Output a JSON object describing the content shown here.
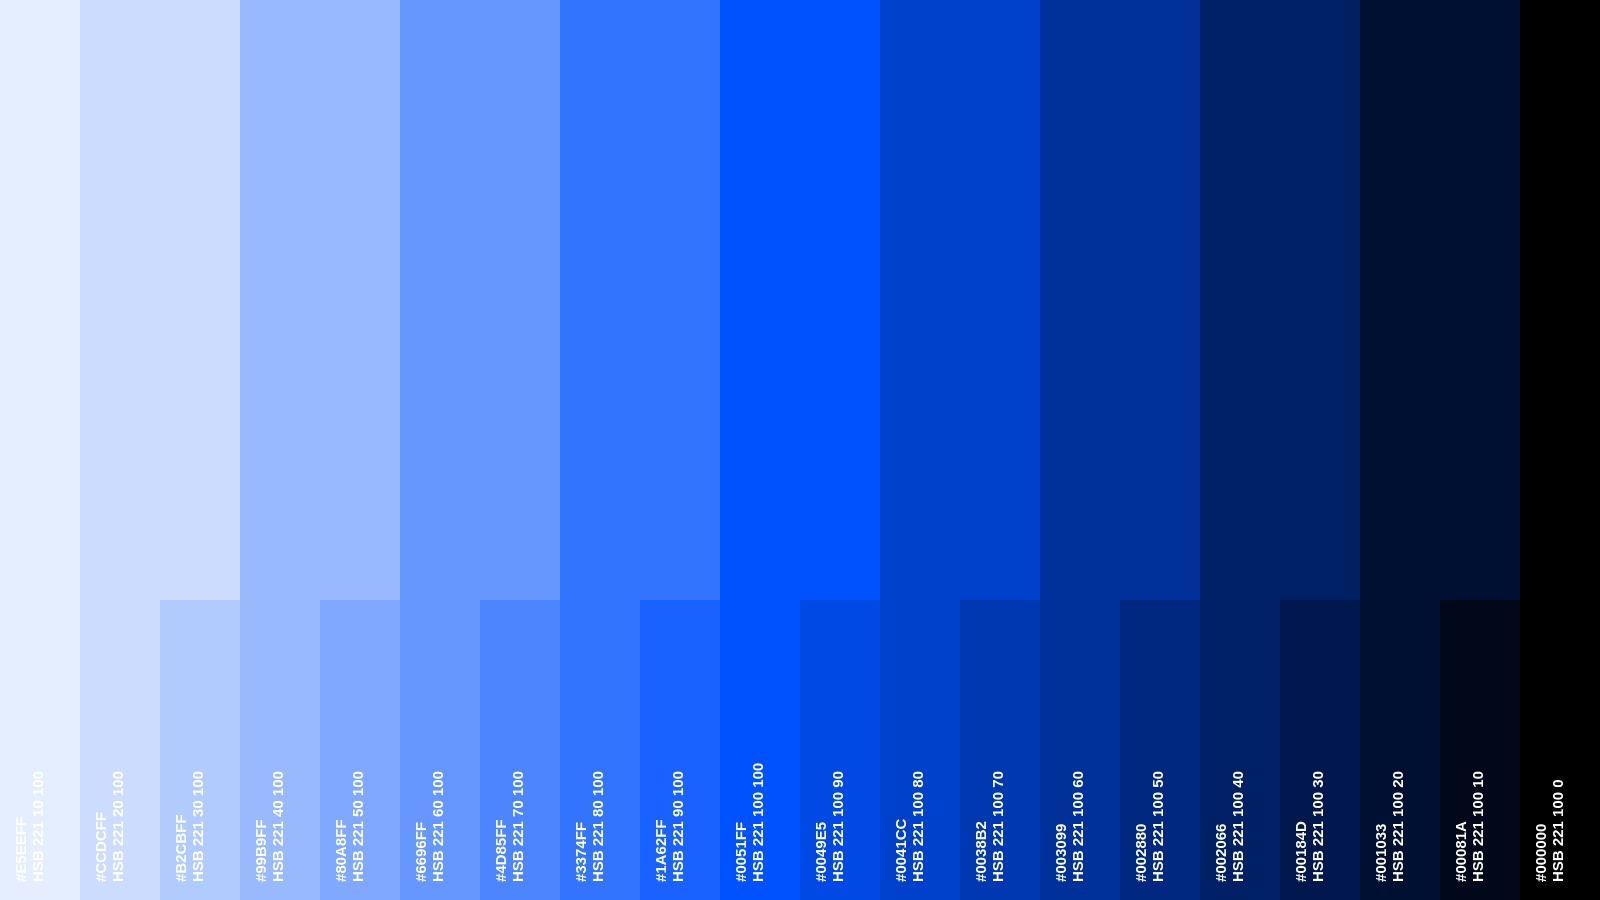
{
  "swatches": [
    {
      "hex": "#E5EEFF",
      "hsb": "HSB 221 10 100"
    },
    {
      "hex": "#CCDCFF",
      "hsb": "HSB 221 20 100"
    },
    {
      "hex": "#B2CBFF",
      "hsb": "HSB 221 30 100"
    },
    {
      "hex": "#99B9FF",
      "hsb": "HSB 221 40 100"
    },
    {
      "hex": "#80A8FF",
      "hsb": "HSB 221 50 100"
    },
    {
      "hex": "#6696FF",
      "hsb": "HSB 221 60 100"
    },
    {
      "hex": "#4D85FF",
      "hsb": "HSB 221 70 100"
    },
    {
      "hex": "#3374FF",
      "hsb": "HSB 221 80 100"
    },
    {
      "hex": "#1A62FF",
      "hsb": "HSB 221 90 100"
    },
    {
      "hex": "#0051FF",
      "hsb": "HSB 221 100 100"
    },
    {
      "hex": "#0049E5",
      "hsb": "HSB 221 100 90"
    },
    {
      "hex": "#0041CC",
      "hsb": "HSB 221 100 80"
    },
    {
      "hex": "#0038B2",
      "hsb": "HSB 221 100 70"
    },
    {
      "hex": "#003099",
      "hsb": "HSB 221 100 60"
    },
    {
      "hex": "#002880",
      "hsb": "HSB 221 100 50"
    },
    {
      "hex": "#002066",
      "hsb": "HSB 221 100 40"
    },
    {
      "hex": "#00184D",
      "hsb": "HSB 221 100 30"
    },
    {
      "hex": "#001033",
      "hsb": "HSB 221 100 20"
    },
    {
      "hex": "#00081A",
      "hsb": "HSB 221 100 10"
    },
    {
      "hex": "#000000",
      "hsb": "HSB 221 100 0"
    }
  ]
}
